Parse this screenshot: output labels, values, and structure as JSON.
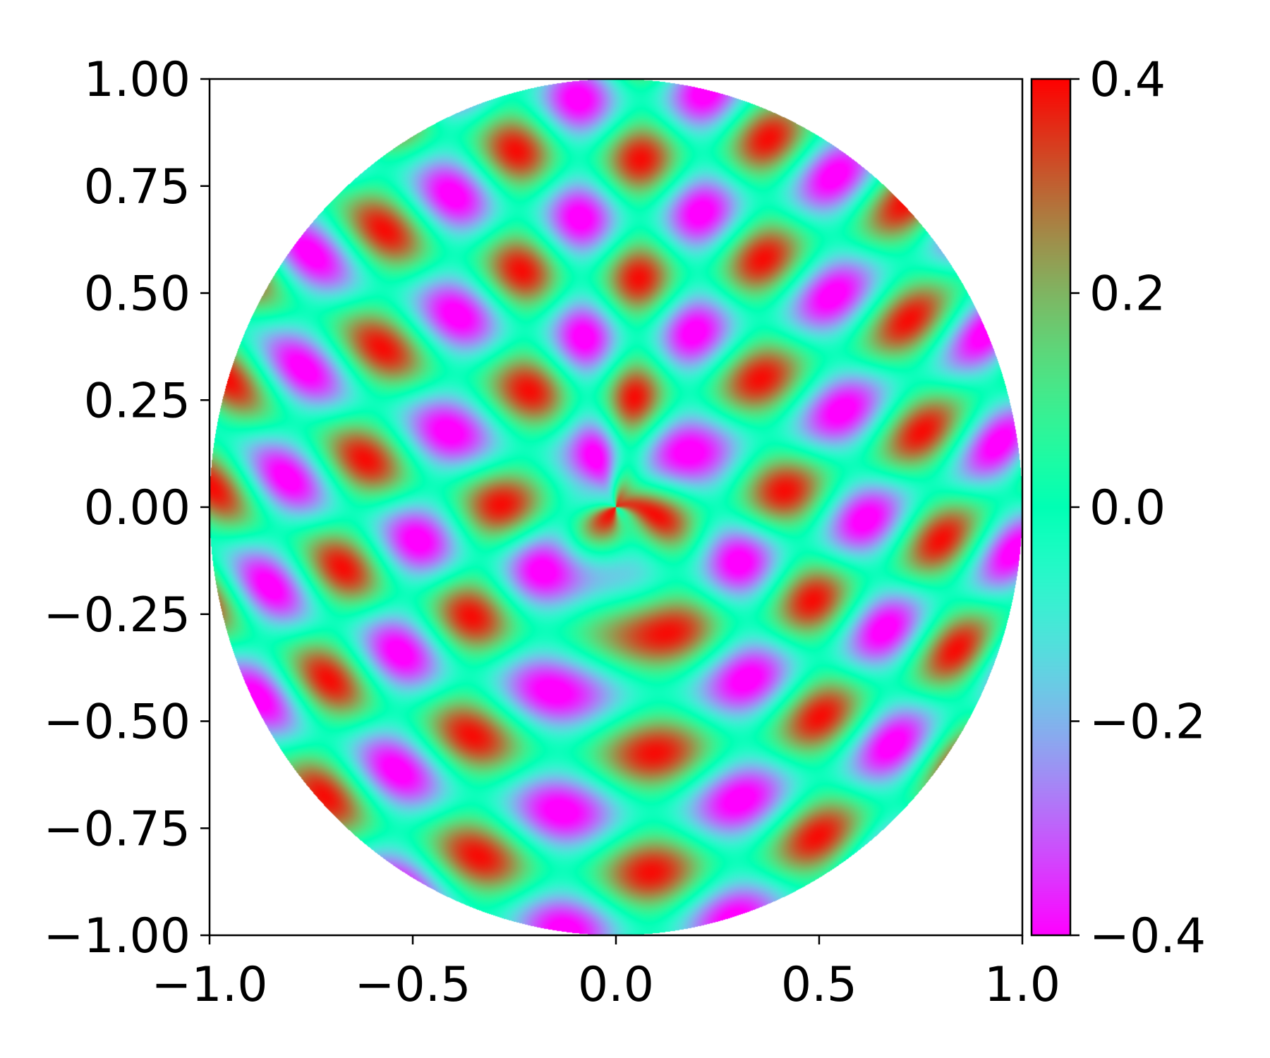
{
  "chart_data": {
    "type": "heatmap",
    "title": "",
    "xlabel": "",
    "ylabel": "",
    "xlim": [
      -1.0,
      1.0
    ],
    "ylim": [
      -1.0,
      1.0
    ],
    "domain": "unit disk (values shown only inside circle of radius 1)",
    "colormap": "rainbow",
    "x_ticks": [
      "−1.0",
      "−0.5",
      "0.0",
      "0.5",
      "1.0"
    ],
    "x_tick_values": [
      -1.0,
      -0.5,
      0.0,
      0.5,
      1.0
    ],
    "y_ticks": [
      "1.00",
      "0.75",
      "0.50",
      "0.25",
      "0.00",
      "−0.25",
      "−0.50",
      "−0.75",
      "−1.00"
    ],
    "y_tick_values": [
      1.0,
      0.75,
      0.5,
      0.25,
      0.0,
      -0.25,
      -0.5,
      -0.75,
      -1.0
    ],
    "colorbar": {
      "range": [
        -0.4,
        0.4
      ],
      "ticks": [
        "0.4",
        "0.2",
        "0.0",
        "−0.2",
        "−0.4"
      ],
      "tick_values": [
        0.4,
        0.2,
        0.0,
        -0.2,
        -0.4
      ]
    },
    "grid": false
  }
}
